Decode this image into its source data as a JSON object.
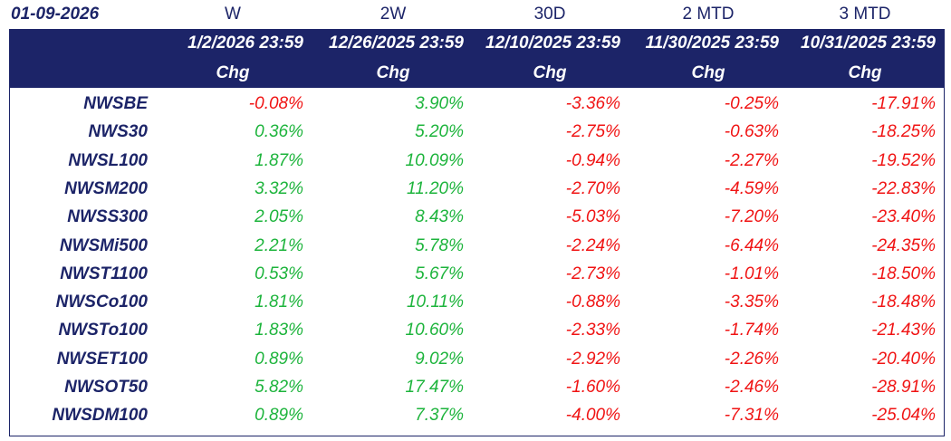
{
  "header": {
    "date": "01-09-2026",
    "periods": [
      "W",
      "2W",
      "30D",
      "2 MTD",
      "3 MTD"
    ],
    "dates": [
      "1/2/2026 23:59",
      "12/26/2025 23:59",
      "12/10/2025 23:59",
      "11/30/2025 23:59",
      "10/31/2025 23:59"
    ],
    "change_labels": [
      "Chg",
      "Chg",
      "Chg",
      "Chg",
      "Chg"
    ]
  },
  "table": {
    "rows": [
      [
        "NWSBE",
        "-0.08%",
        "3.90%",
        "-3.36%",
        "-0.25%",
        "-17.91%"
      ],
      [
        "NWS30",
        "0.36%",
        "5.20%",
        "-2.75%",
        "-0.63%",
        "-18.25%"
      ],
      [
        "NWSL100",
        "1.87%",
        "10.09%",
        "-0.94%",
        "-2.27%",
        "-19.52%"
      ],
      [
        "NWSM200",
        "3.32%",
        "11.20%",
        "-2.70%",
        "-4.59%",
        "-22.83%"
      ],
      [
        "NWSS300",
        "2.05%",
        "8.43%",
        "-5.03%",
        "-7.20%",
        "-23.40%"
      ],
      [
        "NWSMi500",
        "2.21%",
        "5.78%",
        "-2.24%",
        "-6.44%",
        "-24.35%"
      ],
      [
        "NWST1100",
        "0.53%",
        "5.67%",
        "-2.73%",
        "-1.01%",
        "-18.50%"
      ],
      [
        "NWSCo100",
        "1.81%",
        "10.11%",
        "-0.88%",
        "-3.35%",
        "-18.48%"
      ],
      [
        "NWSTo100",
        "1.83%",
        "10.60%",
        "-2.33%",
        "-1.74%",
        "-21.43%"
      ],
      [
        "NWSET100",
        "0.89%",
        "9.02%",
        "-2.92%",
        "-2.26%",
        "-20.40%"
      ],
      [
        "NWSOT50",
        "5.82%",
        "17.47%",
        "-1.60%",
        "-2.46%",
        "-28.91%"
      ],
      [
        "NWSDM100",
        "0.89%",
        "7.37%",
        "-4.00%",
        "-7.31%",
        "-25.04%"
      ]
    ]
  }
}
